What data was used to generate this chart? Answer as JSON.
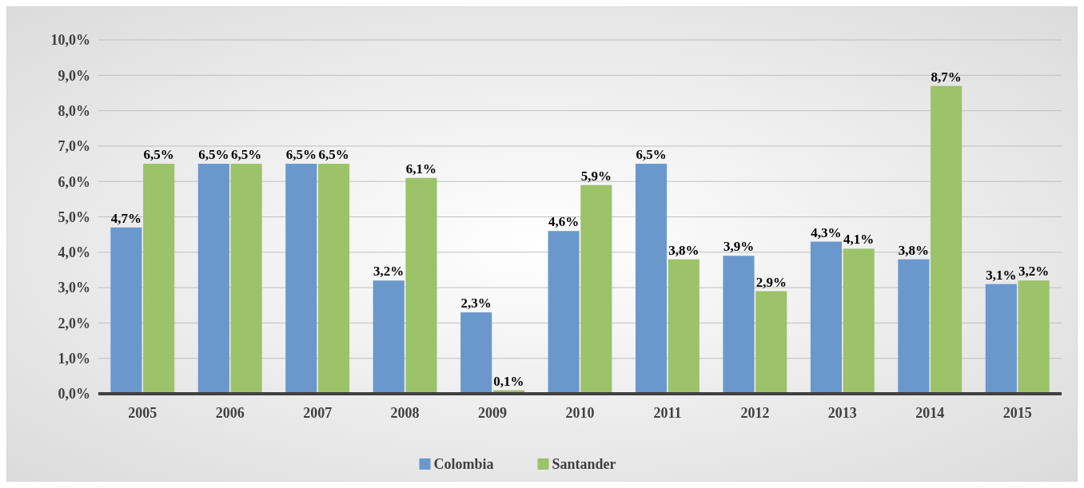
{
  "chart_data": {
    "type": "bar",
    "categories": [
      "2005",
      "2006",
      "2007",
      "2008",
      "2009",
      "2010",
      "2011",
      "2012",
      "2013",
      "2014",
      "2015"
    ],
    "series": [
      {
        "name": "Colombia",
        "color": "#6a98cc",
        "values": [
          4.7,
          6.5,
          6.5,
          3.2,
          2.3,
          4.6,
          6.5,
          3.9,
          4.3,
          3.8,
          3.1
        ],
        "value_labels": [
          "4,7%",
          "6,5%",
          "6,5%",
          "3,2%",
          "2,3%",
          "4,6%",
          "6,5%",
          "3,9%",
          "4,3%",
          "3,8%",
          "3,1%"
        ]
      },
      {
        "name": "Santander",
        "color": "#9cc26a",
        "values": [
          6.5,
          6.5,
          6.5,
          6.1,
          0.1,
          5.9,
          3.8,
          2.9,
          4.1,
          8.7,
          3.2
        ],
        "value_labels": [
          "6,5%",
          "6,5%",
          "6,5%",
          "6,1%",
          "0,1%",
          "5,9%",
          "3,8%",
          "2,9%",
          "4,1%",
          "8,7%",
          "3,2%"
        ]
      }
    ],
    "ylim": [
      0,
      10
    ],
    "yticks": [
      {
        "value": 0,
        "label": "0,0%"
      },
      {
        "value": 1,
        "label": "1,0%"
      },
      {
        "value": 2,
        "label": "2,0%"
      },
      {
        "value": 3,
        "label": "3,0%"
      },
      {
        "value": 4,
        "label": "4,0%"
      },
      {
        "value": 5,
        "label": "5,0%"
      },
      {
        "value": 6,
        "label": "6,0%"
      },
      {
        "value": 7,
        "label": "7,0%"
      },
      {
        "value": 8,
        "label": "8,0%"
      },
      {
        "value": 9,
        "label": "9,0%"
      },
      {
        "value": 10,
        "label": "10,0%"
      }
    ],
    "grid": "y",
    "legend": "bottom"
  }
}
